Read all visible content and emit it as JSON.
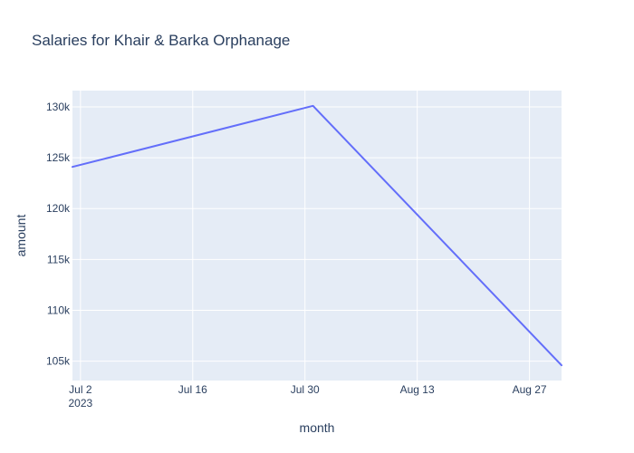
{
  "chart_data": {
    "type": "line",
    "title": "Salaries for Khair & Barka Orphanage",
    "xlabel": "month",
    "ylabel": "amount",
    "x": [
      "2023-07-01",
      "2023-07-31",
      "2023-08-31"
    ],
    "series": [
      {
        "name": "amount",
        "values": [
          124100,
          130100,
          104600
        ],
        "color": "#636efa"
      }
    ],
    "xlim": [
      "2023-07-01",
      "2023-08-31"
    ],
    "ylim": [
      103100,
      131600
    ],
    "x_ticks": [
      {
        "date": "2023-07-02",
        "label": "Jul 2",
        "sublabel": "2023"
      },
      {
        "date": "2023-07-16",
        "label": "Jul 16",
        "sublabel": ""
      },
      {
        "date": "2023-07-30",
        "label": "Jul 30",
        "sublabel": ""
      },
      {
        "date": "2023-08-13",
        "label": "Aug 13",
        "sublabel": ""
      },
      {
        "date": "2023-08-27",
        "label": "Aug 27",
        "sublabel": ""
      }
    ],
    "y_ticks": [
      {
        "value": 105000,
        "label": "105k"
      },
      {
        "value": 110000,
        "label": "110k"
      },
      {
        "value": 115000,
        "label": "115k"
      },
      {
        "value": 120000,
        "label": "120k"
      },
      {
        "value": 125000,
        "label": "125k"
      },
      {
        "value": 130000,
        "label": "130k"
      }
    ],
    "grid": true,
    "colors": {
      "plot_background": "#e5ecf6",
      "grid": "#ffffff",
      "text": "#2a3f5f"
    }
  }
}
